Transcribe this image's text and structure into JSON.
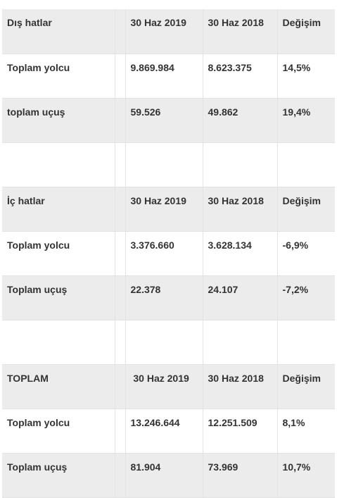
{
  "sections": [
    {
      "header": {
        "label": "Dış hatlar",
        "col_a": "30  Haz 2019",
        "col_b": "30 Haz 2018",
        "col_change": "Değişim"
      },
      "rows": [
        {
          "label": "Toplam yolcu",
          "col_a": "9.869.984",
          "col_b": "8.623.375",
          "col_change": "14,5%"
        },
        {
          "label": "toplam uçuş",
          "col_a": "59.526",
          "col_b": "49.862",
          "col_change": "19,4%"
        }
      ]
    },
    {
      "header": {
        "label": "İç hatlar",
        "col_a": "30 Haz 2019",
        "col_b": "30 Haz 2018",
        "col_change": "Değişim"
      },
      "rows": [
        {
          "label": "Toplam yolcu",
          "col_a": "3.376.660",
          "col_b": "3.628.134",
          "col_change": "-6,9%"
        },
        {
          "label": "Toplam uçuş",
          "col_a": "22.378",
          "col_b": "24.107",
          "col_change": "-7,2%"
        }
      ]
    },
    {
      "header": {
        "label": "TOPLAM",
        "col_a": " 30 Haz 2019",
        "col_b": "30 Haz 2018",
        "col_change": "Değişim"
      },
      "rows": [
        {
          "label": "Toplam yolcu",
          "col_a": "13.246.644",
          "col_b": "12.251.509",
          "col_change": "8,1%"
        },
        {
          "label": "Toplam uçuş",
          "col_a": "81.904",
          "col_b": "73.969",
          "col_change": "10,7%"
        }
      ]
    }
  ]
}
